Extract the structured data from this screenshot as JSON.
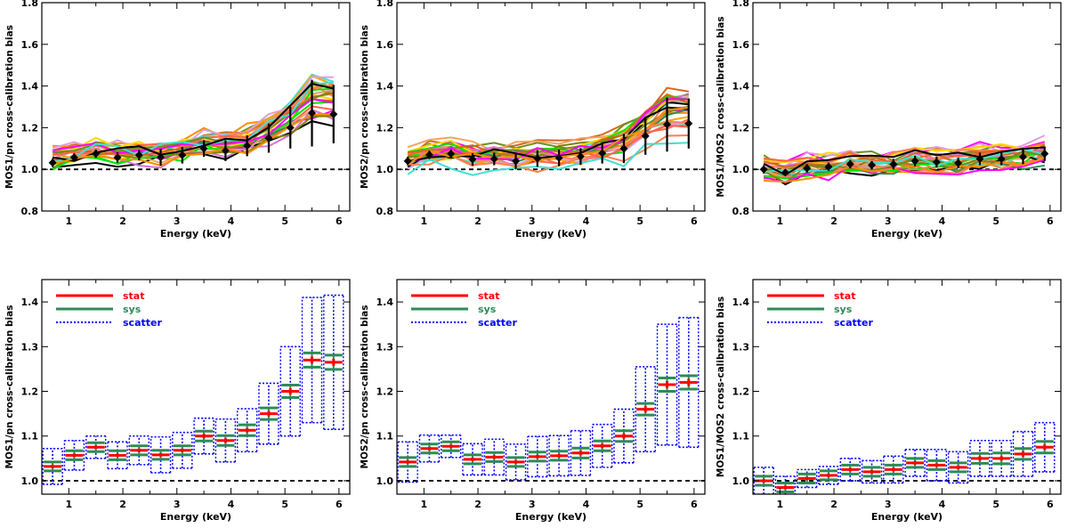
{
  "colors": {
    "stat": "#ff0000",
    "sys": "#2e8b57",
    "scatter": "#0000ff",
    "reference": "#000000",
    "bin_marker": "#000000"
  },
  "chart_data": [
    {
      "id": "mos1-pn-top",
      "type": "line",
      "xlabel": "Energy (keV)",
      "ylabel": "MOS1/pn cross-calibration bias",
      "xlim": [
        0.5,
        6.2
      ],
      "ylim": [
        0.8,
        1.8
      ],
      "xticks": [
        "1",
        "2",
        "3",
        "4",
        "5",
        "6"
      ],
      "yticks": [
        "0.8",
        "1.0",
        "1.2",
        "1.4",
        "1.6",
        "1.8"
      ],
      "reference_line": 1.0,
      "x": [
        0.7,
        1.1,
        1.5,
        1.9,
        2.3,
        2.7,
        3.1,
        3.5,
        3.9,
        4.3,
        4.7,
        5.1,
        5.5,
        5.9
      ],
      "mean": [
        1.032,
        1.057,
        1.075,
        1.057,
        1.068,
        1.058,
        1.068,
        1.1,
        1.09,
        1.113,
        1.15,
        1.2,
        1.27,
        1.265
      ],
      "mean_error": [
        0.02,
        0.02,
        0.02,
        0.025,
        0.025,
        0.04,
        0.04,
        0.04,
        0.05,
        0.05,
        0.07,
        0.1,
        0.16,
        0.14
      ],
      "individual_sources_note": "~30 coloured per-source curves",
      "series_color_cycle": [
        "#ffd700",
        "#00e600",
        "#ff7f50",
        "#ff6347",
        "#d2691e",
        "#6b8e23",
        "#ff00ff",
        "#40e0d0",
        "#000000",
        "#ff8c00",
        "#e9967a",
        "#2e8b57",
        "#ffa500",
        "#dda0dd",
        "#f4a460",
        "#da70d6",
        "#808000",
        "#fa8072"
      ]
    },
    {
      "id": "mos2-pn-top",
      "type": "line",
      "xlabel": "Energy (keV)",
      "ylabel": "MOS2/pn cross-calibration bias",
      "xlim": [
        0.5,
        6.2
      ],
      "ylim": [
        0.8,
        1.8
      ],
      "xticks": [
        "1",
        "2",
        "3",
        "4",
        "5",
        "6"
      ],
      "yticks": [
        "0.8",
        "1.0",
        "1.2",
        "1.4",
        "1.6",
        "1.8"
      ],
      "reference_line": 1.0,
      "x": [
        0.7,
        1.1,
        1.5,
        1.9,
        2.3,
        2.7,
        3.1,
        3.5,
        3.9,
        4.3,
        4.7,
        5.1,
        5.5,
        5.9
      ],
      "mean": [
        1.04,
        1.07,
        1.075,
        1.048,
        1.05,
        1.04,
        1.052,
        1.055,
        1.062,
        1.078,
        1.1,
        1.16,
        1.215,
        1.22
      ],
      "mean_error": [
        0.02,
        0.02,
        0.02,
        0.03,
        0.03,
        0.04,
        0.04,
        0.04,
        0.04,
        0.05,
        0.07,
        0.09,
        0.13,
        0.12
      ],
      "individual_sources_note": "~30 coloured per-source curves",
      "series_color_cycle": [
        "#ffd700",
        "#00e600",
        "#ff7f50",
        "#ff6347",
        "#d2691e",
        "#6b8e23",
        "#ff00ff",
        "#40e0d0",
        "#000000",
        "#ff8c00",
        "#e9967a",
        "#2e8b57",
        "#ffa500",
        "#dda0dd",
        "#f4a460",
        "#da70d6",
        "#808000",
        "#fa8072"
      ]
    },
    {
      "id": "mos1-mos2-top",
      "type": "line",
      "xlabel": "Energy (keV)",
      "ylabel": "MOS1/MOS2 cross-calibration bias",
      "xlim": [
        0.5,
        6.2
      ],
      "ylim": [
        0.8,
        1.8
      ],
      "xticks": [
        "1",
        "2",
        "3",
        "4",
        "5",
        "6"
      ],
      "yticks": [
        "0.8",
        "1.0",
        "1.2",
        "1.4",
        "1.6",
        "1.8"
      ],
      "reference_line": 1.0,
      "x": [
        0.7,
        1.1,
        1.5,
        1.9,
        2.3,
        2.7,
        3.1,
        3.5,
        3.9,
        4.3,
        4.7,
        5.1,
        5.5,
        5.9
      ],
      "mean": [
        1.0,
        0.985,
        1.005,
        1.012,
        1.025,
        1.02,
        1.025,
        1.04,
        1.035,
        1.03,
        1.05,
        1.05,
        1.06,
        1.075
      ],
      "mean_error": [
        0.02,
        0.015,
        0.02,
        0.02,
        0.02,
        0.02,
        0.025,
        0.025,
        0.025,
        0.025,
        0.03,
        0.03,
        0.035,
        0.035
      ],
      "individual_sources_note": "~30 coloured per-source curves",
      "series_color_cycle": [
        "#ffd700",
        "#00e600",
        "#ff7f50",
        "#ff6347",
        "#d2691e",
        "#6b8e23",
        "#ff00ff",
        "#40e0d0",
        "#000000",
        "#ff8c00",
        "#e9967a",
        "#2e8b57",
        "#ffa500",
        "#dda0dd",
        "#f4a460",
        "#da70d6",
        "#808000",
        "#fa8072"
      ]
    },
    {
      "id": "mos1-pn-bottom",
      "type": "errorbar",
      "xlabel": "Energy (keV)",
      "ylabel": "MOS1/pn cross-calibration bias",
      "xlim": [
        0.5,
        6.2
      ],
      "ylim": [
        0.97,
        1.45
      ],
      "xticks": [
        "1",
        "2",
        "3",
        "4",
        "5",
        "6"
      ],
      "yticks": [
        "1.0",
        "1.1",
        "1.2",
        "1.3",
        "1.4"
      ],
      "reference_line": 1.0,
      "legend": [
        "stat",
        "sys",
        "scatter"
      ],
      "legend_position": "top-left",
      "x": [
        0.7,
        1.1,
        1.5,
        1.9,
        2.3,
        2.7,
        3.1,
        3.5,
        3.9,
        4.3,
        4.7,
        5.1,
        5.5,
        5.9
      ],
      "mean": [
        1.032,
        1.057,
        1.075,
        1.057,
        1.068,
        1.058,
        1.068,
        1.1,
        1.09,
        1.113,
        1.15,
        1.2,
        1.27,
        1.265
      ],
      "stat": [
        0.004,
        0.004,
        0.004,
        0.004,
        0.004,
        0.004,
        0.004,
        0.005,
        0.005,
        0.005,
        0.006,
        0.007,
        0.008,
        0.008
      ],
      "sys": [
        0.01,
        0.01,
        0.01,
        0.01,
        0.01,
        0.01,
        0.01,
        0.011,
        0.011,
        0.012,
        0.013,
        0.014,
        0.016,
        0.016
      ],
      "scatter": [
        0.04,
        0.033,
        0.025,
        0.03,
        0.032,
        0.04,
        0.04,
        0.04,
        0.048,
        0.048,
        0.068,
        0.1,
        0.14,
        0.15
      ]
    },
    {
      "id": "mos2-pn-bottom",
      "type": "errorbar",
      "xlabel": "Energy (keV)",
      "ylabel": "MOS2/pn cross-calibration bias",
      "xlim": [
        0.5,
        6.2
      ],
      "ylim": [
        0.97,
        1.45
      ],
      "xticks": [
        "1",
        "2",
        "3",
        "4",
        "5",
        "6"
      ],
      "yticks": [
        "1.0",
        "1.1",
        "1.2",
        "1.3",
        "1.4"
      ],
      "reference_line": 1.0,
      "legend": [
        "stat",
        "sys",
        "scatter"
      ],
      "legend_position": "top-left",
      "x": [
        0.7,
        1.1,
        1.5,
        1.9,
        2.3,
        2.7,
        3.1,
        3.5,
        3.9,
        4.3,
        4.7,
        5.1,
        5.5,
        5.9
      ],
      "mean": [
        1.042,
        1.072,
        1.077,
        1.048,
        1.053,
        1.042,
        1.054,
        1.056,
        1.062,
        1.078,
        1.1,
        1.16,
        1.215,
        1.22
      ],
      "stat": [
        0.004,
        0.004,
        0.004,
        0.004,
        0.004,
        0.004,
        0.004,
        0.004,
        0.005,
        0.005,
        0.006,
        0.007,
        0.008,
        0.008
      ],
      "sys": [
        0.01,
        0.01,
        0.01,
        0.01,
        0.01,
        0.01,
        0.01,
        0.01,
        0.011,
        0.011,
        0.012,
        0.013,
        0.015,
        0.015
      ],
      "scatter": [
        0.045,
        0.03,
        0.025,
        0.035,
        0.04,
        0.04,
        0.045,
        0.045,
        0.05,
        0.048,
        0.06,
        0.095,
        0.135,
        0.145
      ]
    },
    {
      "id": "mos1-mos2-bottom",
      "type": "errorbar",
      "xlabel": "Energy (keV)",
      "ylabel": "MOS1/MOS2 cross-calibration bias",
      "xlim": [
        0.5,
        6.2
      ],
      "ylim": [
        0.97,
        1.45
      ],
      "xticks": [
        "1",
        "2",
        "3",
        "4",
        "5",
        "6"
      ],
      "yticks": [
        "1.0",
        "1.1",
        "1.2",
        "1.3",
        "1.4"
      ],
      "reference_line": 1.0,
      "legend": [
        "stat",
        "sys",
        "scatter"
      ],
      "legend_position": "top-left",
      "x": [
        0.7,
        1.1,
        1.5,
        1.9,
        2.3,
        2.7,
        3.1,
        3.5,
        3.9,
        4.3,
        4.7,
        5.1,
        5.5,
        5.9
      ],
      "mean": [
        1.0,
        0.985,
        1.005,
        1.012,
        1.025,
        1.02,
        1.025,
        1.04,
        1.035,
        1.03,
        1.05,
        1.05,
        1.06,
        1.075
      ],
      "stat": [
        0.004,
        0.004,
        0.004,
        0.004,
        0.004,
        0.004,
        0.004,
        0.004,
        0.004,
        0.004,
        0.005,
        0.005,
        0.006,
        0.006
      ],
      "sys": [
        0.01,
        0.01,
        0.01,
        0.01,
        0.01,
        0.01,
        0.01,
        0.01,
        0.01,
        0.01,
        0.011,
        0.012,
        0.012,
        0.013
      ],
      "scatter": [
        0.03,
        0.025,
        0.02,
        0.02,
        0.025,
        0.025,
        0.03,
        0.03,
        0.035,
        0.035,
        0.04,
        0.04,
        0.05,
        0.055
      ]
    }
  ]
}
